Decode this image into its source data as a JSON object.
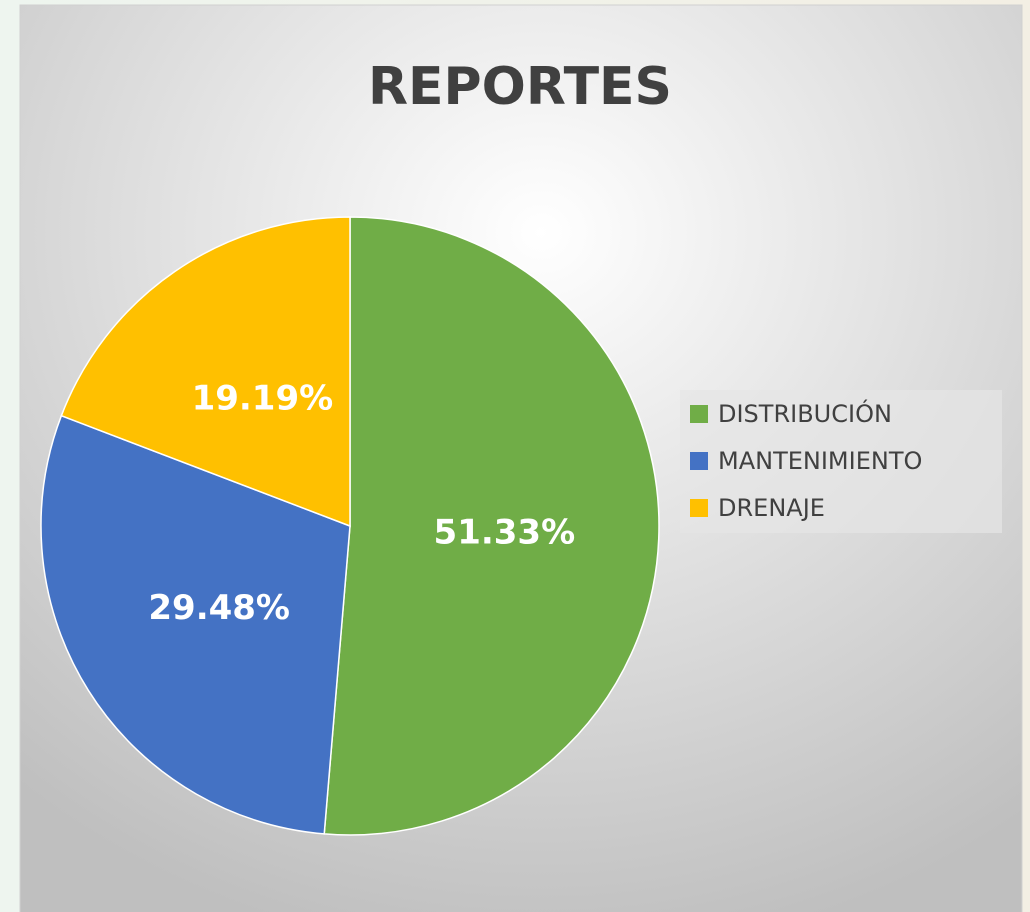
{
  "chart_data": {
    "type": "pie",
    "title": "REPORTES",
    "categories": [
      "DISTRIBUCIÓN",
      "MANTENIMIENTO",
      "DRENAJE"
    ],
    "values": [
      51.33,
      29.48,
      19.19
    ],
    "value_labels": [
      "51.33%",
      "29.48%",
      "19.19%"
    ],
    "colors": [
      "#70ad47",
      "#4472c4",
      "#ffc000"
    ],
    "legend": "right"
  }
}
